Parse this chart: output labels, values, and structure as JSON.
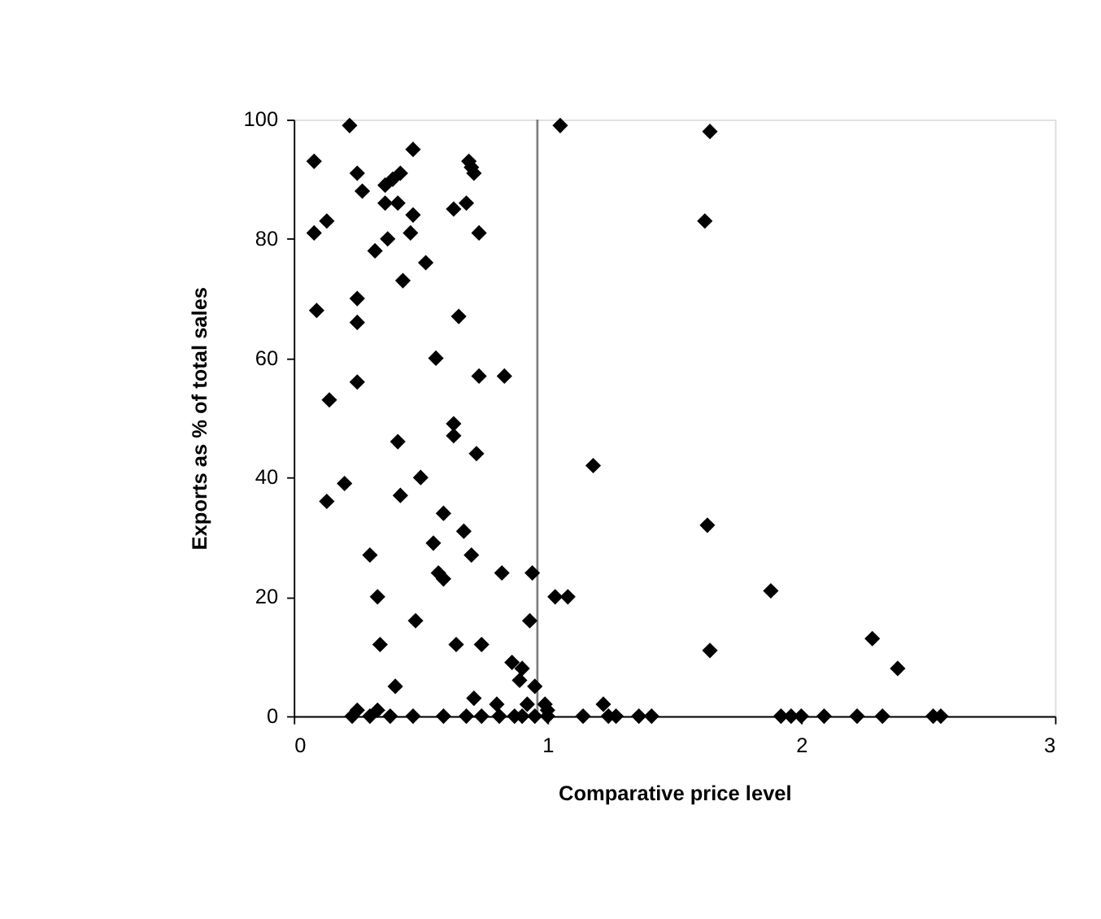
{
  "chart_data": {
    "type": "scatter",
    "xlabel": "Comparative price level",
    "ylabel": "Exports as % of total sales",
    "x": [
      0.22,
      0.08,
      0.47,
      0.25,
      0.27,
      0.39,
      0.42,
      0.36,
      0.69,
      0.7,
      0.71,
      0.36,
      0.41,
      0.47,
      0.63,
      0.68,
      0.13,
      0.08,
      0.37,
      0.46,
      0.73,
      0.32,
      0.52,
      0.43,
      0.25,
      0.09,
      0.25,
      0.65,
      0.56,
      0.25,
      0.73,
      0.83,
      0.14,
      0.63,
      0.63,
      0.41,
      0.72,
      0.2,
      0.13,
      0.5,
      0.42,
      0.59,
      0.67,
      0.3,
      0.55,
      0.7,
      0.57,
      0.59,
      0.82,
      0.94,
      1.03,
      0.33,
      0.48,
      0.93,
      0.34,
      0.64,
      0.74,
      0.86,
      0.9,
      0.89,
      0.95,
      0.4,
      0.71,
      0.8,
      0.92,
      0.99,
      0.23,
      0.3,
      0.38,
      0.47,
      0.59,
      0.68,
      0.74,
      0.81,
      0.87,
      0.9,
      0.95,
      1.0,
      0.25,
      0.33,
      1.05,
      1.64,
      1.62,
      1.18,
      1.63,
      1.08,
      1.88,
      1.64,
      1.0,
      1.14,
      1.22,
      1.24,
      1.27,
      1.36,
      1.41,
      1.92,
      1.96,
      2.0,
      2.09,
      2.22,
      2.32,
      2.52,
      2.55,
      2.28,
      2.38
    ],
    "values": [
      99,
      93,
      95,
      91,
      88,
      90,
      91,
      89,
      93,
      92,
      91,
      86,
      86,
      84,
      85,
      86,
      83,
      81,
      80,
      81,
      81,
      78,
      76,
      73,
      70,
      68,
      66,
      67,
      60,
      56,
      57,
      57,
      53,
      49,
      47,
      46,
      44,
      39,
      36,
      40,
      37,
      34,
      31,
      27,
      29,
      27,
      24,
      23,
      24,
      24,
      20,
      20,
      16,
      16,
      12,
      12,
      12,
      9,
      8,
      6,
      5,
      5,
      3,
      2,
      2,
      2,
      0,
      0,
      0,
      0,
      0,
      0,
      0,
      0,
      0,
      0,
      0,
      0,
      1,
      1,
      99,
      98,
      83,
      42,
      32,
      20,
      21,
      11,
      1,
      0,
      2,
      0,
      0,
      0,
      0,
      0,
      0,
      0,
      0,
      0,
      0,
      0,
      0,
      13,
      8
    ],
    "color": "#000000",
    "marker": "diamond",
    "grid": false,
    "xlim": [
      0,
      3
    ],
    "xticks": [
      0,
      1,
      2,
      3
    ],
    "ylim": [
      0,
      100
    ],
    "yticks": [
      0,
      20,
      40,
      60,
      80,
      100
    ],
    "ref_lines": [
      {
        "axis": "x",
        "value": 0.96,
        "color": "#808080"
      }
    ]
  }
}
